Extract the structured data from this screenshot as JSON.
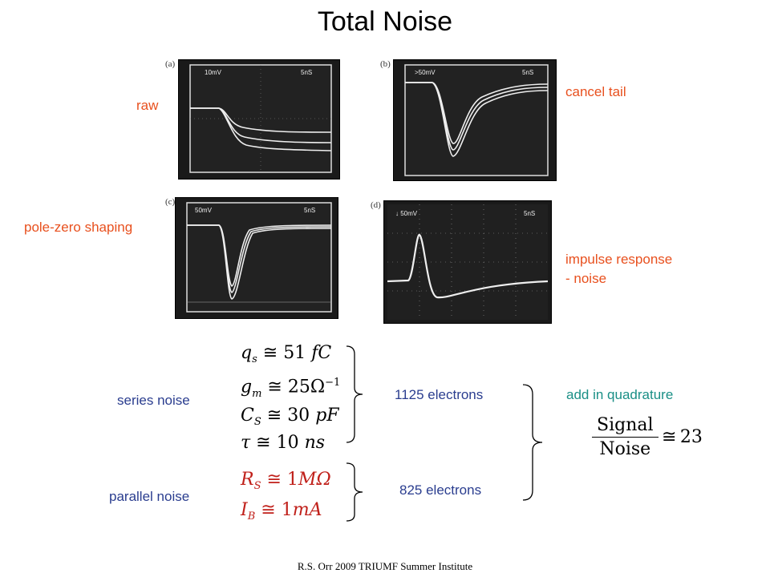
{
  "title": "Total Noise",
  "panels": {
    "a": {
      "letter": "(a)",
      "scale": "10mV",
      "time": "5nS",
      "label": "raw"
    },
    "b": {
      "letter": "(b)",
      "scale": ">50mV",
      "time": "5nS",
      "label": "cancel tail"
    },
    "c": {
      "letter": "(c)",
      "scale": "50mV",
      "time": "5nS",
      "label": "pole-zero shaping"
    },
    "d": {
      "letter": "(d)",
      "scale": "50mV",
      "time": "5nS",
      "label_line1": "impulse response",
      "label_line2": "- noise"
    }
  },
  "series": {
    "label": "series noise",
    "eq1": {
      "sym": "q",
      "sub": "s",
      "rel": "≅",
      "val": "51 ",
      "unit": "fC"
    },
    "eq2": {
      "sym": "g",
      "sub": "m",
      "rel": "≅",
      "val": "25Ω",
      "sup": "−1"
    },
    "eq3": {
      "sym": "C",
      "sub": "S",
      "rel": "≅",
      "val": "30 ",
      "unit": "pF"
    },
    "eq4": {
      "sym": "τ",
      "rel": "≅",
      "val": "10 ",
      "unit": "ns"
    },
    "result": "1125 electrons"
  },
  "parallel": {
    "label": "parallel noise",
    "eq1": {
      "sym": "R",
      "sub": "S",
      "rel": "≅",
      "val": "1",
      "unit": "MΩ"
    },
    "eq2": {
      "sym": "I",
      "sub": "B",
      "rel": "≅",
      "val": "1",
      "unit": "mA"
    },
    "result": "825 electrons"
  },
  "quadrature": {
    "label": "add in quadrature",
    "numerator": "Signal",
    "denominator": "Noise",
    "rel": "≅",
    "value": "23"
  },
  "footer": "R.S. Orr 2009 TRIUMF Summer Institute"
}
